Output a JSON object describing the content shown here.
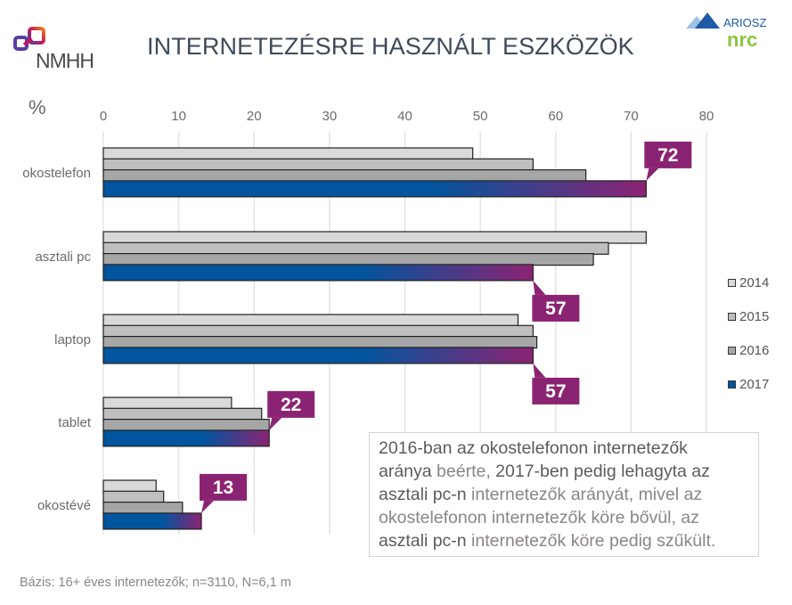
{
  "header": {
    "title": "INTERNETEZÉSRE HASZNÁLT ESZKÖZÖK",
    "left_logo_text": "NMHH",
    "right_logo_top": "ARIOSZ",
    "right_logo_bottom": "nrc"
  },
  "colors": {
    "bar_2014": "#d9d9d9",
    "bar_2015": "#bfbfbf",
    "bar_2016": "#a6a6a6",
    "bar_2017_start": "#00559e",
    "bar_2017_end": "#8b2373",
    "callout": "#8b2373",
    "gridline": "#e3e3e3",
    "text": "#6b6b6b"
  },
  "chart_data": {
    "type": "bar",
    "orientation": "horizontal",
    "title": "INTERNETEZÉSRE HASZNÁLT ESZKÖZÖK",
    "unit_label": "%",
    "xlim": [
      0,
      80
    ],
    "ticks": [
      0,
      10,
      20,
      30,
      40,
      50,
      60,
      70,
      80
    ],
    "grid": true,
    "legend_position": "right",
    "categories": [
      "okostelefon",
      "asztali pc",
      "laptop",
      "tablet",
      "okostévé"
    ],
    "series": [
      {
        "name": "2014",
        "values": [
          49,
          72,
          55,
          17,
          7
        ]
      },
      {
        "name": "2015",
        "values": [
          57,
          67,
          57,
          21,
          8
        ]
      },
      {
        "name": "2016",
        "values": [
          64,
          65,
          57.5,
          22,
          10.5
        ]
      },
      {
        "name": "2017",
        "values": [
          72,
          57,
          57,
          22,
          13
        ]
      }
    ],
    "callouts": [
      {
        "category": "okostelefon",
        "label": "72",
        "placement": "above"
      },
      {
        "category": "asztali pc",
        "label": "57",
        "placement": "below"
      },
      {
        "category": "laptop",
        "label": "57",
        "placement": "below"
      },
      {
        "category": "tablet",
        "label": "22",
        "placement": "above"
      },
      {
        "category": "okostévé",
        "label": "13",
        "placement": "above"
      }
    ]
  },
  "legend": {
    "items": [
      {
        "label": "2014"
      },
      {
        "label": "2015"
      },
      {
        "label": "2016"
      },
      {
        "label": "2017"
      }
    ]
  },
  "note": {
    "lines": [
      [
        {
          "t": "2016-ban az okostelefonon internetezők",
          "em": true
        }
      ],
      [
        {
          "t": "aránya",
          "em": true
        },
        {
          "t": " beérte, ",
          "em": false
        },
        {
          "t": "2017-ben pedig lehagyta az",
          "em": true
        }
      ],
      [
        {
          "t": "asztali pc-n",
          "em": true
        },
        {
          "t": " internetezők arányát, mivel az",
          "em": false
        }
      ],
      [
        {
          "t": "okostelefonon internetezők köre bővül, az",
          "em": false
        }
      ],
      [
        {
          "t": "asztali pc-n",
          "em": true
        },
        {
          "t": " internetezők köre pedig szűkült.",
          "em": false
        }
      ]
    ]
  },
  "footer": {
    "text": "Bázis: 16+ éves internetezők; n=3110, N=6,1 m"
  }
}
